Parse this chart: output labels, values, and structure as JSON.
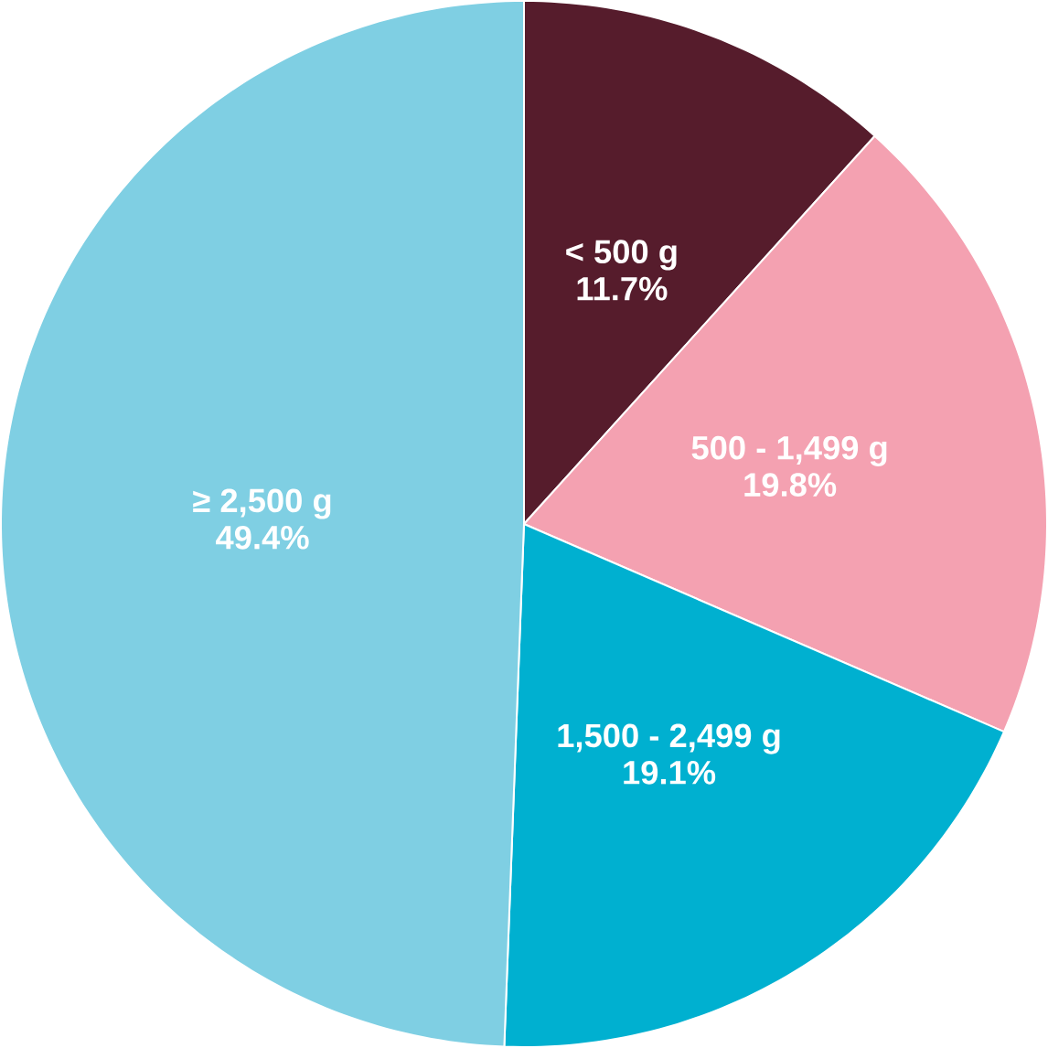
{
  "chart_data": {
    "type": "pie",
    "categories": [
      "< 500 g",
      "500 - 1,499 g",
      "1,500 - 2,499 g",
      "≥ 2,500 g"
    ],
    "values": [
      11.7,
      19.8,
      19.1,
      49.4
    ],
    "value_labels": [
      "11.7%",
      "19.8%",
      "19.1%",
      "49.4%"
    ],
    "colors": [
      "#561c2c",
      "#f4a1b1",
      "#00b0d0",
      "#7fcfe3"
    ]
  }
}
